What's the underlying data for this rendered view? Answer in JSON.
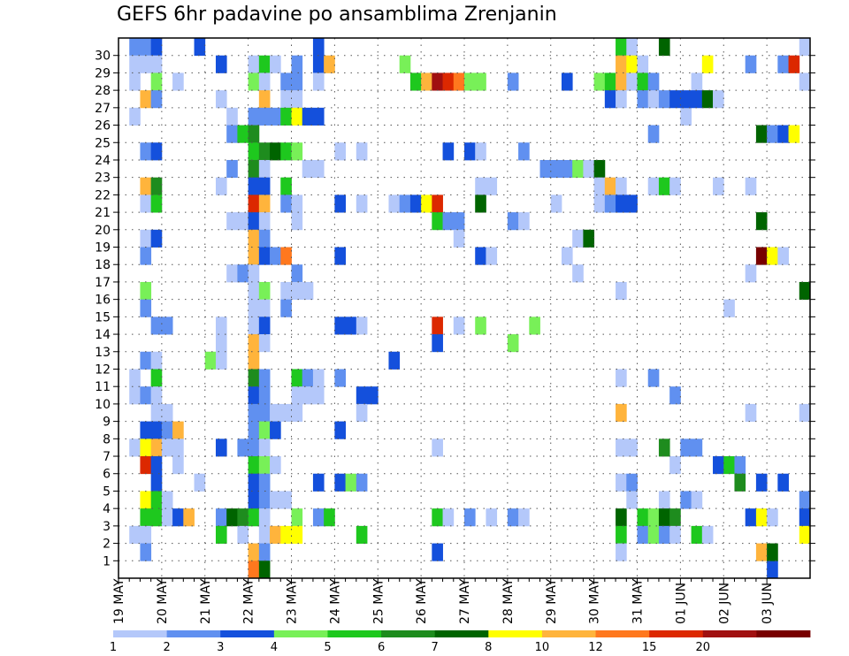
{
  "chart_data": {
    "type": "heatmap",
    "title": "GEFS 6hr padavine po ansamblima Zrenjanin",
    "y_tick_labels": [
      "1",
      "2",
      "3",
      "4",
      "5",
      "6",
      "7",
      "8",
      "9",
      "10",
      "11",
      "12",
      "13",
      "14",
      "15",
      "16",
      "17",
      "18",
      "19",
      "20",
      "21",
      "22",
      "23",
      "24",
      "25",
      "26",
      "27",
      "28",
      "29",
      "30"
    ],
    "x_tick_labels": [
      "19 MAY",
      "20 MAY",
      "21 MAY",
      "22 MAY",
      "23 MAY",
      "24 MAY",
      "25 MAY",
      "26 MAY",
      "27 MAY",
      "28 MAY",
      "29 MAY",
      "30 MAY",
      "31 MAY",
      "01 JUN",
      "02 JUN",
      "03 JUN"
    ],
    "grid": true,
    "legend_placement": "bottom",
    "legend_labels": [
      "1",
      "2",
      "3",
      "4",
      "5",
      "6",
      "7",
      "8",
      "10",
      "12",
      "15",
      "20"
    ],
    "colors": [
      "#b4c8fa",
      "#6090f0",
      "#1450dc",
      "#78f058",
      "#1ec81e",
      "#1e8c1e",
      "#006400",
      "#ffff00",
      "#ffb43c",
      "#ff781e",
      "#dc2800",
      "#a01010",
      "#780000"
    ],
    "columns_per_day": 4,
    "note_levels": "cell value = color level index (0 = lightest bin, 12 = darkest)",
    "cells": [
      [
        1,
        30,
        1
      ],
      [
        1,
        29,
        0
      ],
      [
        1,
        28,
        0
      ],
      [
        1,
        26,
        0
      ],
      [
        1,
        11,
        0
      ],
      [
        1,
        10,
        0
      ],
      [
        1,
        2,
        0
      ],
      [
        1,
        7,
        0
      ],
      [
        2,
        30,
        1
      ],
      [
        2,
        29,
        0
      ],
      [
        2,
        27,
        8
      ],
      [
        2,
        24,
        1
      ],
      [
        2,
        22,
        8
      ],
      [
        2,
        21,
        0
      ],
      [
        2,
        19,
        0
      ],
      [
        2,
        18,
        1
      ],
      [
        2,
        16,
        3
      ],
      [
        2,
        15,
        1
      ],
      [
        2,
        12,
        1
      ],
      [
        2,
        10,
        1
      ],
      [
        2,
        8,
        2
      ],
      [
        2,
        7,
        7
      ],
      [
        2,
        6,
        10
      ],
      [
        2,
        4,
        7
      ],
      [
        2,
        3,
        4
      ],
      [
        2,
        2,
        0
      ],
      [
        2,
        1,
        1
      ],
      [
        3,
        30,
        2
      ],
      [
        3,
        29,
        0
      ],
      [
        3,
        28,
        3
      ],
      [
        3,
        27,
        1
      ],
      [
        3,
        24,
        2
      ],
      [
        3,
        22,
        5
      ],
      [
        3,
        21,
        4
      ],
      [
        3,
        19,
        2
      ],
      [
        3,
        14,
        1
      ],
      [
        3,
        12,
        0
      ],
      [
        3,
        11,
        4
      ],
      [
        3,
        10,
        0
      ],
      [
        3,
        9,
        0
      ],
      [
        3,
        8,
        2
      ],
      [
        3,
        7,
        8
      ],
      [
        3,
        6,
        2
      ],
      [
        3,
        5,
        2
      ],
      [
        3,
        4,
        4
      ],
      [
        3,
        3,
        4
      ],
      [
        4,
        14,
        1
      ],
      [
        4,
        9,
        0
      ],
      [
        4,
        8,
        1
      ],
      [
        4,
        7,
        0
      ],
      [
        4,
        4,
        0
      ],
      [
        4,
        3,
        0
      ],
      [
        5,
        28,
        0
      ],
      [
        5,
        8,
        8
      ],
      [
        5,
        7,
        0
      ],
      [
        5,
        6,
        0
      ],
      [
        5,
        3,
        2
      ],
      [
        6,
        3,
        8
      ],
      [
        7,
        30,
        2
      ],
      [
        7,
        5,
        0
      ],
      [
        8,
        12,
        3
      ],
      [
        9,
        29,
        2
      ],
      [
        9,
        27,
        0
      ],
      [
        9,
        22,
        0
      ],
      [
        9,
        14,
        0
      ],
      [
        9,
        13,
        0
      ],
      [
        9,
        12,
        0
      ],
      [
        9,
        7,
        2
      ],
      [
        9,
        3,
        1
      ],
      [
        9,
        2,
        4
      ],
      [
        10,
        26,
        0
      ],
      [
        10,
        25,
        1
      ],
      [
        10,
        23,
        1
      ],
      [
        10,
        20,
        0
      ],
      [
        10,
        17,
        0
      ],
      [
        10,
        3,
        6
      ],
      [
        11,
        25,
        4
      ],
      [
        11,
        20,
        0
      ],
      [
        11,
        17,
        1
      ],
      [
        11,
        7,
        1
      ],
      [
        11,
        3,
        5
      ],
      [
        11,
        2,
        0
      ],
      [
        12,
        29,
        0
      ],
      [
        12,
        28,
        3
      ],
      [
        12,
        26,
        1
      ],
      [
        12,
        25,
        5
      ],
      [
        12,
        24,
        4
      ],
      [
        12,
        23,
        5
      ],
      [
        12,
        22,
        2
      ],
      [
        12,
        21,
        10
      ],
      [
        12,
        20,
        2
      ],
      [
        12,
        19,
        8
      ],
      [
        12,
        18,
        8
      ],
      [
        12,
        17,
        0
      ],
      [
        12,
        16,
        0
      ],
      [
        12,
        15,
        0
      ],
      [
        12,
        14,
        0
      ],
      [
        12,
        13,
        8
      ],
      [
        12,
        12,
        8
      ],
      [
        12,
        11,
        5
      ],
      [
        12,
        10,
        2
      ],
      [
        12,
        9,
        1
      ],
      [
        12,
        8,
        1
      ],
      [
        12,
        7,
        1
      ],
      [
        12,
        6,
        4
      ],
      [
        12,
        5,
        2
      ],
      [
        12,
        4,
        2
      ],
      [
        12,
        3,
        4
      ],
      [
        12,
        1,
        8
      ],
      [
        12,
        0,
        9
      ],
      [
        13,
        29,
        4
      ],
      [
        13,
        28,
        0
      ],
      [
        13,
        27,
        8
      ],
      [
        13,
        26,
        1
      ],
      [
        13,
        24,
        5
      ],
      [
        13,
        23,
        0
      ],
      [
        13,
        22,
        2
      ],
      [
        13,
        21,
        8
      ],
      [
        13,
        20,
        0
      ],
      [
        13,
        19,
        1
      ],
      [
        13,
        18,
        2
      ],
      [
        13,
        16,
        3
      ],
      [
        13,
        15,
        0
      ],
      [
        13,
        14,
        2
      ],
      [
        13,
        13,
        0
      ],
      [
        13,
        11,
        1
      ],
      [
        13,
        10,
        1
      ],
      [
        13,
        9,
        1
      ],
      [
        13,
        8,
        3
      ],
      [
        13,
        7,
        0
      ],
      [
        13,
        6,
        3
      ],
      [
        13,
        5,
        1
      ],
      [
        13,
        4,
        1
      ],
      [
        13,
        3,
        0
      ],
      [
        13,
        2,
        0
      ],
      [
        13,
        1,
        1
      ],
      [
        13,
        0,
        6
      ],
      [
        14,
        29,
        0
      ],
      [
        14,
        26,
        1
      ],
      [
        14,
        24,
        6
      ],
      [
        14,
        18,
        1
      ],
      [
        14,
        9,
        0
      ],
      [
        14,
        8,
        2
      ],
      [
        14,
        6,
        0
      ],
      [
        14,
        4,
        0
      ],
      [
        14,
        2,
        8
      ],
      [
        15,
        28,
        1
      ],
      [
        15,
        27,
        0
      ],
      [
        15,
        26,
        4
      ],
      [
        15,
        24,
        4
      ],
      [
        15,
        22,
        4
      ],
      [
        15,
        21,
        1
      ],
      [
        15,
        18,
        9
      ],
      [
        15,
        16,
        0
      ],
      [
        15,
        15,
        1
      ],
      [
        15,
        9,
        0
      ],
      [
        15,
        4,
        0
      ],
      [
        15,
        2,
        7
      ],
      [
        16,
        29,
        1
      ],
      [
        16,
        28,
        1
      ],
      [
        16,
        27,
        0
      ],
      [
        16,
        26,
        7
      ],
      [
        16,
        24,
        3
      ],
      [
        16,
        21,
        0
      ],
      [
        16,
        20,
        0
      ],
      [
        16,
        17,
        1
      ],
      [
        16,
        16,
        0
      ],
      [
        16,
        11,
        4
      ],
      [
        16,
        10,
        0
      ],
      [
        16,
        9,
        0
      ],
      [
        16,
        3,
        3
      ],
      [
        16,
        2,
        7
      ],
      [
        17,
        26,
        2
      ],
      [
        17,
        23,
        0
      ],
      [
        17,
        16,
        0
      ],
      [
        17,
        11,
        1
      ],
      [
        17,
        10,
        0
      ],
      [
        18,
        30,
        2
      ],
      [
        18,
        29,
        2
      ],
      [
        18,
        28,
        0
      ],
      [
        18,
        26,
        2
      ],
      [
        18,
        23,
        0
      ],
      [
        18,
        11,
        0
      ],
      [
        18,
        10,
        0
      ],
      [
        18,
        5,
        2
      ],
      [
        18,
        3,
        1
      ],
      [
        19,
        29,
        8
      ],
      [
        19,
        3,
        4
      ],
      [
        20,
        24,
        0
      ],
      [
        20,
        21,
        2
      ],
      [
        20,
        18,
        2
      ],
      [
        20,
        14,
        2
      ],
      [
        20,
        11,
        1
      ],
      [
        20,
        8,
        2
      ],
      [
        20,
        5,
        2
      ],
      [
        21,
        14,
        2
      ],
      [
        21,
        5,
        3
      ],
      [
        22,
        24,
        0
      ],
      [
        22,
        21,
        0
      ],
      [
        22,
        14,
        0
      ],
      [
        22,
        10,
        2
      ],
      [
        22,
        9,
        0
      ],
      [
        22,
        5,
        1
      ],
      [
        22,
        2,
        4
      ],
      [
        23,
        10,
        2
      ],
      [
        25,
        21,
        0
      ],
      [
        25,
        12,
        2
      ],
      [
        26,
        29,
        3
      ],
      [
        26,
        21,
        1
      ],
      [
        27,
        28,
        4
      ],
      [
        27,
        21,
        2
      ],
      [
        28,
        28,
        8
      ],
      [
        28,
        21,
        7
      ],
      [
        29,
        28,
        11
      ],
      [
        29,
        21,
        10
      ],
      [
        29,
        20,
        4
      ],
      [
        29,
        14,
        10
      ],
      [
        29,
        13,
        2
      ],
      [
        29,
        7,
        0
      ],
      [
        29,
        3,
        4
      ],
      [
        29,
        1,
        2
      ],
      [
        30,
        28,
        10
      ],
      [
        30,
        24,
        2
      ],
      [
        30,
        20,
        1
      ],
      [
        30,
        3,
        0
      ],
      [
        31,
        28,
        9
      ],
      [
        31,
        20,
        1
      ],
      [
        31,
        19,
        0
      ],
      [
        31,
        14,
        0
      ],
      [
        32,
        28,
        3
      ],
      [
        32,
        24,
        2
      ],
      [
        32,
        3,
        1
      ],
      [
        33,
        28,
        3
      ],
      [
        33,
        24,
        0
      ],
      [
        33,
        22,
        0
      ],
      [
        33,
        21,
        6
      ],
      [
        33,
        18,
        2
      ],
      [
        33,
        14,
        3
      ],
      [
        34,
        22,
        0
      ],
      [
        34,
        18,
        0
      ],
      [
        34,
        3,
        0
      ],
      [
        36,
        28,
        1
      ],
      [
        36,
        20,
        1
      ],
      [
        36,
        13,
        3
      ],
      [
        36,
        3,
        1
      ],
      [
        37,
        24,
        1
      ],
      [
        37,
        20,
        0
      ],
      [
        37,
        3,
        0
      ],
      [
        38,
        14,
        3
      ],
      [
        39,
        23,
        1
      ],
      [
        40,
        23,
        1
      ],
      [
        40,
        21,
        0
      ],
      [
        41,
        28,
        2
      ],
      [
        41,
        23,
        1
      ],
      [
        41,
        18,
        0
      ],
      [
        42,
        23,
        3
      ],
      [
        42,
        19,
        0
      ],
      [
        42,
        17,
        0
      ],
      [
        43,
        23,
        0
      ],
      [
        43,
        19,
        6
      ],
      [
        44,
        28,
        3
      ],
      [
        44,
        21,
        0
      ],
      [
        44,
        23,
        6
      ],
      [
        44,
        22,
        0
      ],
      [
        45,
        28,
        4
      ],
      [
        45,
        22,
        8
      ],
      [
        45,
        27,
        2
      ],
      [
        45,
        21,
        1
      ],
      [
        46,
        30,
        4
      ],
      [
        46,
        29,
        8
      ],
      [
        46,
        28,
        8
      ],
      [
        46,
        27,
        0
      ],
      [
        46,
        22,
        0
      ],
      [
        46,
        21,
        2
      ],
      [
        46,
        16,
        0
      ],
      [
        46,
        11,
        0
      ],
      [
        46,
        9,
        8
      ],
      [
        46,
        7,
        0
      ],
      [
        46,
        5,
        0
      ],
      [
        46,
        3,
        6
      ],
      [
        46,
        2,
        4
      ],
      [
        46,
        1,
        0
      ],
      [
        47,
        30,
        0
      ],
      [
        47,
        29,
        7
      ],
      [
        47,
        28,
        0
      ],
      [
        47,
        21,
        2
      ],
      [
        47,
        5,
        1
      ],
      [
        47,
        7,
        0
      ],
      [
        47,
        4,
        0
      ],
      [
        48,
        29,
        0
      ],
      [
        48,
        28,
        4
      ],
      [
        48,
        27,
        1
      ],
      [
        48,
        3,
        4
      ],
      [
        48,
        2,
        1
      ],
      [
        49,
        28,
        1
      ],
      [
        49,
        27,
        0
      ],
      [
        49,
        25,
        1
      ],
      [
        49,
        22,
        0
      ],
      [
        49,
        11,
        1
      ],
      [
        49,
        3,
        3
      ],
      [
        49,
        2,
        3
      ],
      [
        50,
        30,
        6
      ],
      [
        50,
        27,
        1
      ],
      [
        50,
        22,
        4
      ],
      [
        50,
        4,
        0
      ],
      [
        50,
        3,
        6
      ],
      [
        50,
        2,
        1
      ],
      [
        50,
        7,
        5
      ],
      [
        51,
        27,
        2
      ],
      [
        51,
        22,
        0
      ],
      [
        51,
        10,
        1
      ],
      [
        51,
        6,
        0
      ],
      [
        51,
        3,
        5
      ],
      [
        51,
        2,
        0
      ],
      [
        52,
        26,
        0
      ],
      [
        52,
        27,
        2
      ],
      [
        52,
        4,
        1
      ],
      [
        52,
        7,
        1
      ],
      [
        53,
        28,
        0
      ],
      [
        53,
        27,
        2
      ],
      [
        53,
        4,
        0
      ],
      [
        53,
        2,
        4
      ],
      [
        53,
        7,
        1
      ],
      [
        54,
        27,
        6
      ],
      [
        54,
        29,
        7
      ],
      [
        54,
        2,
        0
      ],
      [
        55,
        27,
        0
      ],
      [
        55,
        22,
        0
      ],
      [
        55,
        6,
        2
      ],
      [
        56,
        6,
        4
      ],
      [
        56,
        15,
        0
      ],
      [
        57,
        6,
        1
      ],
      [
        57,
        5,
        5
      ],
      [
        58,
        29,
        1
      ],
      [
        58,
        22,
        0
      ],
      [
        58,
        17,
        0
      ],
      [
        58,
        9,
        0
      ],
      [
        58,
        3,
        2
      ],
      [
        59,
        25,
        6
      ],
      [
        59,
        20,
        6
      ],
      [
        59,
        18,
        12
      ],
      [
        59,
        1,
        8
      ],
      [
        59,
        5,
        2
      ],
      [
        59,
        3,
        7
      ],
      [
        60,
        25,
        1
      ],
      [
        60,
        18,
        7
      ],
      [
        60,
        0,
        2
      ],
      [
        60,
        1,
        6
      ],
      [
        60,
        3,
        0
      ],
      [
        61,
        25,
        2
      ],
      [
        61,
        18,
        0
      ],
      [
        61,
        29,
        1
      ],
      [
        61,
        5,
        2
      ],
      [
        62,
        25,
        7
      ],
      [
        62,
        29,
        10
      ],
      [
        63,
        30,
        0
      ],
      [
        63,
        28,
        0
      ],
      [
        63,
        16,
        6
      ],
      [
        63,
        9,
        0
      ],
      [
        63,
        4,
        1
      ],
      [
        63,
        3,
        2
      ],
      [
        63,
        2,
        7
      ]
    ]
  }
}
